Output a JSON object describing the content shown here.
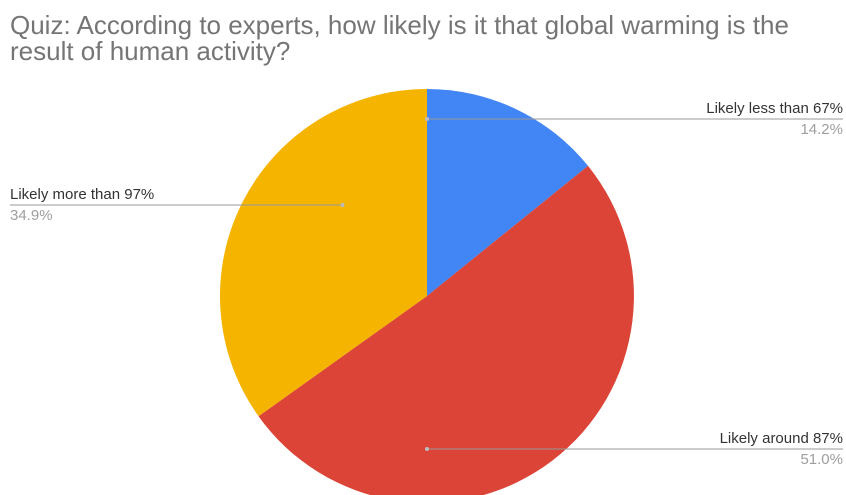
{
  "chart_data": {
    "type": "pie",
    "title": "Quiz: According to experts, how likely is it that global warming is the result of human activity?",
    "slices": [
      {
        "label": "Likely less than 67%",
        "value": 14.2,
        "value_label": "14.2%",
        "color": "#4285f4"
      },
      {
        "label": "Likely around 87%",
        "value": 51.0,
        "value_label": "51.0%",
        "color": "#db4437"
      },
      {
        "label": "Likely more than 97%",
        "value": 34.9,
        "value_label": "34.9%",
        "color": "#f4b400"
      }
    ],
    "start_angle": "12 o'clock",
    "direction": "clockwise",
    "labels": "outside with leader lines"
  }
}
